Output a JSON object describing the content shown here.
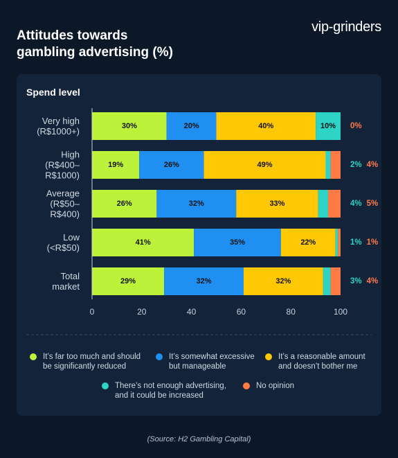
{
  "brand": "vip-grinders",
  "chart_data": {
    "type": "stacked-bar-horizontal",
    "title": "Attitudes towards\ngambling advertising (%)",
    "subtitle": "Spend level",
    "source": "(Source: H2 Gambling Capital)",
    "categories": [
      "Very high\n(R$1000+)",
      "High\n(R$400–\nR$1000)",
      "Average\n(R$50–\nR$400)",
      "Low\n(<R$50)",
      "Total\nmarket"
    ],
    "xlim": [
      0,
      100
    ],
    "xticks": [
      0,
      20,
      40,
      60,
      80,
      100
    ],
    "series": [
      {
        "name": "It’s far too much and should\nbe significantly reduced",
        "color": "#bdf23a",
        "values": [
          30,
          19,
          26,
          41,
          29
        ],
        "value_labels": [
          "30%",
          "19%",
          "26%",
          "41%",
          "29%"
        ]
      },
      {
        "name": "It’s somewhat excessive\nbut manageable",
        "color": "#1f8ff2",
        "values": [
          20,
          26,
          32,
          35,
          32
        ],
        "value_labels": [
          "20%",
          "26%",
          "32%",
          "35%",
          "32%"
        ]
      },
      {
        "name": "It’s a reasonable amount\nand doesn’t bother me",
        "color": "#ffc805",
        "values": [
          40,
          49,
          33,
          22,
          32
        ],
        "value_labels": [
          "40%",
          "49%",
          "33%",
          "22%",
          "32%"
        ]
      },
      {
        "name": "There’s not enough advertising,\nand it could be increased",
        "color": "#2dd3c5",
        "values": [
          10,
          2,
          4,
          1,
          3
        ],
        "value_labels": [
          "10%",
          "2%",
          "4%",
          "1%",
          "3%"
        ]
      },
      {
        "name": "No opinion",
        "color": "#ff7b45",
        "values": [
          0,
          4,
          5,
          1,
          4
        ],
        "value_labels": [
          "0%",
          "4%",
          "5%",
          "1%",
          "4%"
        ]
      }
    ]
  }
}
